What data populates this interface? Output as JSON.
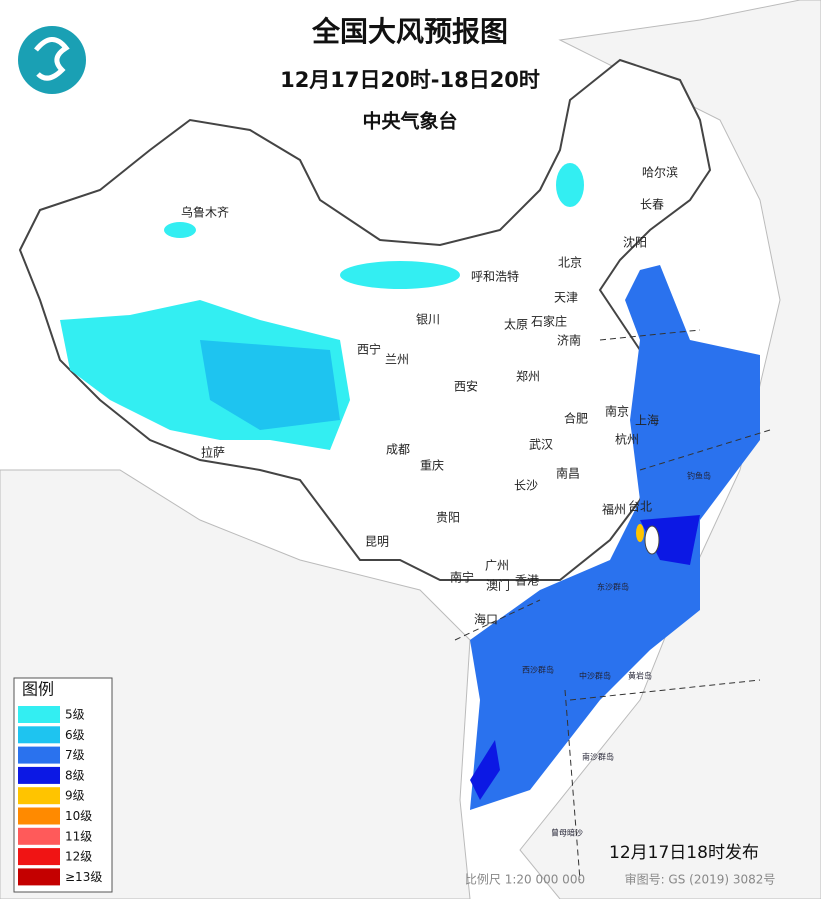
{
  "header": {
    "title": "全国大风预报图",
    "subtitle": "12月17日20时-18日20时",
    "issuer": "中央气象台"
  },
  "legend": {
    "title": "图例",
    "items": [
      {
        "label": "5级",
        "color": "#33eef2"
      },
      {
        "label": "6级",
        "color": "#1ec4f0"
      },
      {
        "label": "7级",
        "color": "#2a72ee"
      },
      {
        "label": "8级",
        "color": "#0c18e4"
      },
      {
        "label": "9级",
        "color": "#ffc400"
      },
      {
        "label": "10级",
        "color": "#ff8a00"
      },
      {
        "label": "11级",
        "color": "#ff5a5a"
      },
      {
        "label": "12级",
        "color": "#f01414"
      },
      {
        "label": "≥13级",
        "color": "#c40000"
      }
    ]
  },
  "cities": [
    "乌鲁木齐",
    "哈尔滨",
    "长春",
    "沈阳",
    "北京",
    "天津",
    "呼和浩特",
    "银川",
    "太原",
    "石家庄",
    "济南",
    "西宁",
    "兰州",
    "西安",
    "郑州",
    "南京",
    "上海",
    "合肥",
    "武汉",
    "杭州",
    "成都",
    "重庆",
    "拉萨",
    "南昌",
    "长沙",
    "贵阳",
    "福州",
    "台北",
    "昆明",
    "南宁",
    "广州",
    "澳门",
    "香港",
    "海口"
  ],
  "islands": [
    "钓鱼岛",
    "东沙群岛",
    "西沙群岛",
    "中沙群岛",
    "黄岩岛",
    "南沙群岛",
    "曾母暗沙"
  ],
  "footer": {
    "release": "12月17日18时发布",
    "scale": "比例尺 1:20 000 000",
    "review": "审图号: GS (2019) 3082号"
  }
}
